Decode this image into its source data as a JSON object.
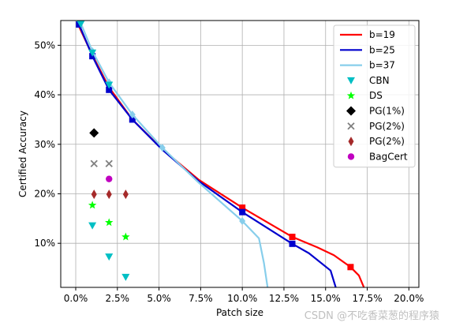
{
  "chart_data": {
    "type": "line",
    "xlabel": "Patch size",
    "ylabel": "Certified Accuracy",
    "xlim": [
      -0.9,
      20.6
    ],
    "ylim": [
      1.1,
      55.0
    ],
    "x_ticks": [
      0.0,
      2.5,
      5.0,
      7.5,
      10.0,
      12.5,
      15.0,
      17.5,
      20.0
    ],
    "x_tick_labels": [
      "0.0%",
      "2.5%",
      "5.0%",
      "7.5%",
      "10.0%",
      "12.5%",
      "15.0%",
      "17.5%",
      "20.0%"
    ],
    "y_ticks": [
      10,
      20,
      30,
      40,
      50
    ],
    "y_tick_labels": [
      "10%",
      "20%",
      "30%",
      "40%",
      "50%"
    ],
    "grid": true,
    "legend_position": "top-right",
    "series": [
      {
        "name": "b=19",
        "kind": "line",
        "color": "#ff0000",
        "marker": "square",
        "x": [
          0.1,
          1.0,
          2.0,
          3.4,
          5.2,
          7.4,
          10.0,
          13.0,
          14.5,
          15.5,
          16.5,
          17.0,
          17.3,
          17.6
        ],
        "y": [
          54.5,
          48.0,
          41.5,
          35.0,
          29.0,
          22.8,
          17.2,
          11.3,
          9.2,
          7.6,
          5.2,
          3.5,
          1.1,
          -1.0
        ],
        "marker_x": [
          10.0,
          13.0,
          16.5
        ],
        "marker_y": [
          17.2,
          11.3,
          5.2
        ]
      },
      {
        "name": "b=25",
        "kind": "line",
        "color": "#0000cd",
        "marker": "square",
        "x": [
          0.2,
          1.0,
          2.0,
          3.4,
          5.2,
          7.4,
          10.0,
          13.0,
          14.0,
          15.3,
          15.6,
          15.8
        ],
        "y": [
          54.2,
          47.8,
          41.0,
          35.0,
          28.9,
          22.5,
          16.3,
          9.9,
          8.0,
          4.5,
          1.2,
          -1.0
        ],
        "marker_x": [
          0.2,
          1.0,
          2.0,
          3.4,
          10.0,
          13.0
        ],
        "marker_y": [
          54.2,
          47.8,
          41.0,
          35.0,
          16.3,
          9.9
        ]
      },
      {
        "name": "b=37",
        "kind": "line",
        "color": "#87ceeb",
        "marker": "diamond",
        "x": [
          0.3,
          1.0,
          2.0,
          3.4,
          5.2,
          7.4,
          10.0,
          11.0,
          11.3,
          11.5,
          11.6
        ],
        "y": [
          54.5,
          48.8,
          42.5,
          36.0,
          29.3,
          22.2,
          14.5,
          11.0,
          6.0,
          1.5,
          -1.0
        ],
        "marker_x": [
          1.0,
          2.0,
          3.4,
          5.2,
          10.0
        ],
        "marker_y": [
          48.8,
          42.5,
          36.0,
          29.3,
          14.5
        ]
      },
      {
        "name": "CBN",
        "kind": "scatter",
        "color": "#00bfc4",
        "marker": "triangle-down",
        "x": [
          0.3,
          1.0,
          1.0,
          2.0,
          2.0,
          3.0
        ],
        "y": [
          54.3,
          48.5,
          13.6,
          42.0,
          7.3,
          3.2
        ]
      },
      {
        "name": "DS",
        "kind": "scatter",
        "color": "#00ff00",
        "marker": "star",
        "x": [
          1.0,
          2.0,
          3.0
        ],
        "y": [
          17.7,
          14.2,
          11.3
        ]
      },
      {
        "name": "PG(1%)",
        "kind": "scatter",
        "color": "#000000",
        "marker": "diamond-big",
        "x": [
          1.1
        ],
        "y": [
          32.3
        ]
      },
      {
        "name": "PG(2%)",
        "kind": "scatter",
        "color": "#7f7f7f",
        "marker": "x",
        "x": [
          1.1,
          2.0
        ],
        "y": [
          26.1,
          26.1
        ]
      },
      {
        "name": "PG(2%)",
        "kind": "scatter",
        "color": "#a52a2a",
        "marker": "thin-diamond",
        "x": [
          1.1,
          2.0,
          3.0
        ],
        "y": [
          19.9,
          19.9,
          19.9
        ]
      },
      {
        "name": "BagCert",
        "kind": "scatter",
        "color": "#c000c0",
        "marker": "circle",
        "x": [
          2.0
        ],
        "y": [
          23.0
        ]
      }
    ]
  },
  "watermark": "CSDN @不吃香菜葱的程序猿"
}
